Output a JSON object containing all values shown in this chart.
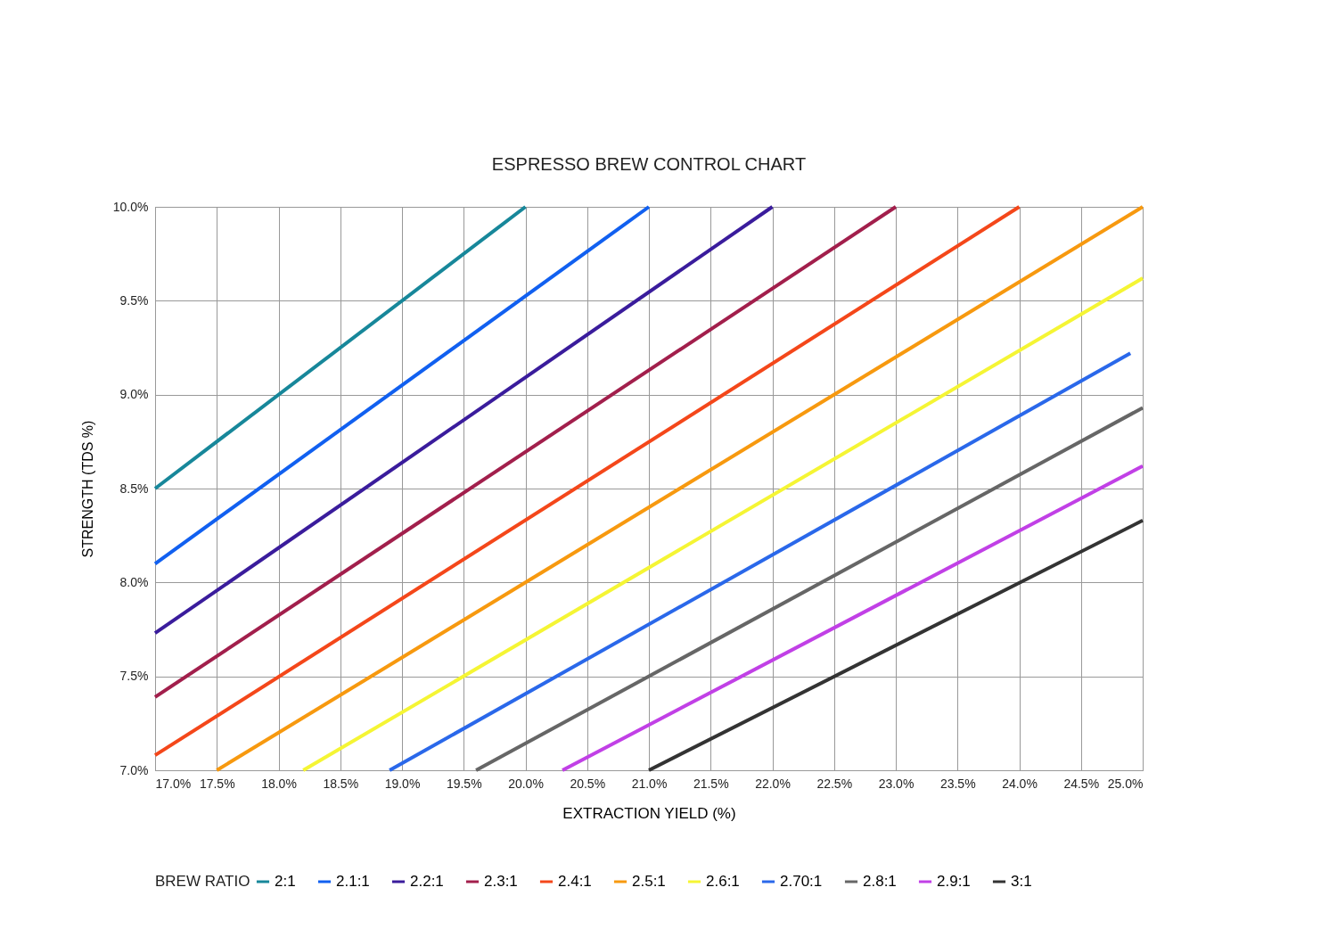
{
  "chart_data": {
    "type": "line",
    "title": "ESPRESSO BREW CONTROL CHART",
    "xlabel": "EXTRACTION YIELD (%)",
    "ylabel": "STRENGTH (TDS %)",
    "legend_title": "BREW RATIO",
    "legend": "bottom",
    "grid": true,
    "xlim": [
      17,
      25
    ],
    "ylim": [
      7,
      10
    ],
    "xticks": [
      {
        "value": 17,
        "label": "17.0%"
      },
      {
        "value": 17.5,
        "label": "17.5%"
      },
      {
        "value": 18,
        "label": "18.0%"
      },
      {
        "value": 18.5,
        "label": "18.5%"
      },
      {
        "value": 19,
        "label": "19.0%"
      },
      {
        "value": 19.5,
        "label": "19.5%"
      },
      {
        "value": 20,
        "label": "20.0%"
      },
      {
        "value": 20.5,
        "label": "20.5%"
      },
      {
        "value": 21,
        "label": "21.0%"
      },
      {
        "value": 21.5,
        "label": "21.5%"
      },
      {
        "value": 22,
        "label": "22.0%"
      },
      {
        "value": 22.5,
        "label": "22.5%"
      },
      {
        "value": 23,
        "label": "23.0%"
      },
      {
        "value": 23.5,
        "label": "23.5%"
      },
      {
        "value": 24,
        "label": "24.0%"
      },
      {
        "value": 24.5,
        "label": "24.5%"
      },
      {
        "value": 25,
        "label": "25.0%"
      }
    ],
    "yticks": [
      {
        "value": 7,
        "label": "7.0%"
      },
      {
        "value": 7.5,
        "label": "7.5%"
      },
      {
        "value": 8,
        "label": "8.0%"
      },
      {
        "value": 8.5,
        "label": "8.5%"
      },
      {
        "value": 9,
        "label": "9.0%"
      },
      {
        "value": 9.5,
        "label": "9.5%"
      },
      {
        "value": 10,
        "label": "10.0%"
      }
    ],
    "series": [
      {
        "name": "2:1",
        "color": "#17879a",
        "x": [
          17,
          20
        ],
        "values": [
          8.5,
          10
        ]
      },
      {
        "name": "2.1:1",
        "color": "#1160f0",
        "x": [
          17,
          21
        ],
        "values": [
          8.1,
          10
        ]
      },
      {
        "name": "2.2:1",
        "color": "#3a1c9c",
        "x": [
          17,
          22
        ],
        "values": [
          7.73,
          10
        ]
      },
      {
        "name": "2.3:1",
        "color": "#a21f4c",
        "x": [
          17,
          23
        ],
        "values": [
          7.39,
          10
        ]
      },
      {
        "name": "2.4:1",
        "color": "#f4471a",
        "x": [
          17,
          24
        ],
        "values": [
          7.08,
          10
        ]
      },
      {
        "name": "2.5:1",
        "color": "#f7990f",
        "x": [
          17.5,
          25
        ],
        "values": [
          7,
          10
        ]
      },
      {
        "name": "2.6:1",
        "color": "#f5f534",
        "x": [
          18.2,
          25
        ],
        "values": [
          7,
          9.62
        ]
      },
      {
        "name": "2.70:1",
        "color": "#2a68ea",
        "x": [
          18.9,
          24.9
        ],
        "values": [
          7,
          9.22
        ]
      },
      {
        "name": "2.8:1",
        "color": "#666666",
        "x": [
          19.6,
          25
        ],
        "values": [
          7,
          8.93
        ]
      },
      {
        "name": "2.9:1",
        "color": "#c140e6",
        "x": [
          20.3,
          25
        ],
        "values": [
          7,
          8.62
        ]
      },
      {
        "name": "3:1",
        "color": "#333333",
        "x": [
          21,
          25
        ],
        "values": [
          7,
          8.33
        ]
      }
    ]
  }
}
